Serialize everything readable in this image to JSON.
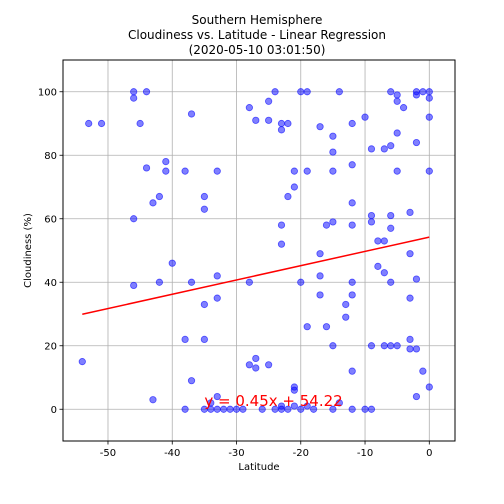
{
  "chart_data": {
    "type": "scatter",
    "title_lines": [
      "Southern Hemisphere",
      "Cloudiness vs. Latitude - Linear Regression",
      "(2020-05-10 03:01:50)"
    ],
    "xlabel": "Latitude",
    "ylabel": "Cloudiness (%)",
    "xlim": [
      -57,
      4
    ],
    "ylim": [
      -10,
      110
    ],
    "xticks": [
      -50,
      -40,
      -30,
      -20,
      -10,
      0
    ],
    "yticks": [
      0,
      20,
      40,
      60,
      80,
      100
    ],
    "grid": true,
    "point_color": "#0000ff",
    "line_color": "#ff0000",
    "points": [
      [
        -54,
        15
      ],
      [
        -53,
        90
      ],
      [
        -51,
        90
      ],
      [
        -46,
        100
      ],
      [
        -46,
        98
      ],
      [
        -46,
        60
      ],
      [
        -46,
        39
      ],
      [
        -45,
        90
      ],
      [
        -44,
        100
      ],
      [
        -44,
        76
      ],
      [
        -43,
        65
      ],
      [
        -43,
        3
      ],
      [
        -42,
        67
      ],
      [
        -42,
        40
      ],
      [
        -41,
        78
      ],
      [
        -41,
        75
      ],
      [
        -40,
        46
      ],
      [
        -38,
        75
      ],
      [
        -38,
        22
      ],
      [
        -38,
        0
      ],
      [
        -37,
        93
      ],
      [
        -37,
        40
      ],
      [
        -37,
        9
      ],
      [
        -35,
        67
      ],
      [
        -35,
        63
      ],
      [
        -35,
        33
      ],
      [
        -35,
        22
      ],
      [
        -35,
        0
      ],
      [
        -34,
        2
      ],
      [
        -34,
        0
      ],
      [
        -33,
        75
      ],
      [
        -33,
        42
      ],
      [
        -33,
        35
      ],
      [
        -33,
        4
      ],
      [
        -33,
        0
      ],
      [
        -32,
        0
      ],
      [
        -31,
        0
      ],
      [
        -30,
        0
      ],
      [
        -29,
        0
      ],
      [
        -28,
        95
      ],
      [
        -28,
        40
      ],
      [
        -28,
        14
      ],
      [
        -27,
        91
      ],
      [
        -27,
        16
      ],
      [
        -27,
        13
      ],
      [
        -26,
        0
      ],
      [
        -25,
        97
      ],
      [
        -25,
        91
      ],
      [
        -25,
        14
      ],
      [
        -24,
        100
      ],
      [
        -24,
        0
      ],
      [
        -23,
        90
      ],
      [
        -23,
        88
      ],
      [
        -23,
        58
      ],
      [
        -23,
        52
      ],
      [
        -23,
        1
      ],
      [
        -23,
        0
      ],
      [
        -22,
        90
      ],
      [
        -22,
        67
      ],
      [
        -22,
        0
      ],
      [
        -21,
        75
      ],
      [
        -21,
        70
      ],
      [
        -21,
        7
      ],
      [
        -21,
        6
      ],
      [
        -21,
        1
      ],
      [
        -20,
        100
      ],
      [
        -20,
        40
      ],
      [
        -20,
        0
      ],
      [
        -19,
        100
      ],
      [
        -19,
        75
      ],
      [
        -19,
        26
      ],
      [
        -19,
        1
      ],
      [
        -18,
        0
      ],
      [
        -17,
        89
      ],
      [
        -17,
        49
      ],
      [
        -17,
        42
      ],
      [
        -17,
        36
      ],
      [
        -16,
        58
      ],
      [
        -16,
        26
      ],
      [
        -15,
        86
      ],
      [
        -15,
        81
      ],
      [
        -15,
        75
      ],
      [
        -15,
        59
      ],
      [
        -15,
        20
      ],
      [
        -15,
        0
      ],
      [
        -14,
        100
      ],
      [
        -14,
        2
      ],
      [
        -13,
        33
      ],
      [
        -13,
        29
      ],
      [
        -12,
        90
      ],
      [
        -12,
        77
      ],
      [
        -12,
        65
      ],
      [
        -12,
        58
      ],
      [
        -12,
        40
      ],
      [
        -12,
        36
      ],
      [
        -12,
        12
      ],
      [
        -12,
        0
      ],
      [
        -10,
        92
      ],
      [
        -10,
        0
      ],
      [
        -9,
        82
      ],
      [
        -9,
        61
      ],
      [
        -9,
        59
      ],
      [
        -9,
        20
      ],
      [
        -9,
        0
      ],
      [
        -8,
        53
      ],
      [
        -8,
        45
      ],
      [
        -7,
        82
      ],
      [
        -7,
        53
      ],
      [
        -7,
        43
      ],
      [
        -7,
        20
      ],
      [
        -6,
        100
      ],
      [
        -6,
        83
      ],
      [
        -6,
        61
      ],
      [
        -6,
        57
      ],
      [
        -6,
        40
      ],
      [
        -6,
        20
      ],
      [
        -5,
        99
      ],
      [
        -5,
        97
      ],
      [
        -5,
        87
      ],
      [
        -5,
        75
      ],
      [
        -5,
        20
      ],
      [
        -4,
        95
      ],
      [
        -3,
        62
      ],
      [
        -3,
        49
      ],
      [
        -3,
        35
      ],
      [
        -3,
        22
      ],
      [
        -3,
        19
      ],
      [
        -2,
        84
      ],
      [
        -2,
        41
      ],
      [
        -2,
        19
      ],
      [
        -2,
        4
      ],
      [
        -2,
        100
      ],
      [
        -2,
        99
      ],
      [
        -1,
        100
      ],
      [
        -1,
        12
      ],
      [
        0,
        100
      ],
      [
        0,
        98
      ],
      [
        0,
        92
      ],
      [
        0,
        75
      ],
      [
        0,
        7
      ]
    ],
    "regression": {
      "slope": 0.45,
      "intercept": 54.22,
      "x_range": [
        -54,
        0
      ],
      "equation": "y = 0.45x + 54.22",
      "label_at": [
        -35,
        1
      ]
    }
  }
}
